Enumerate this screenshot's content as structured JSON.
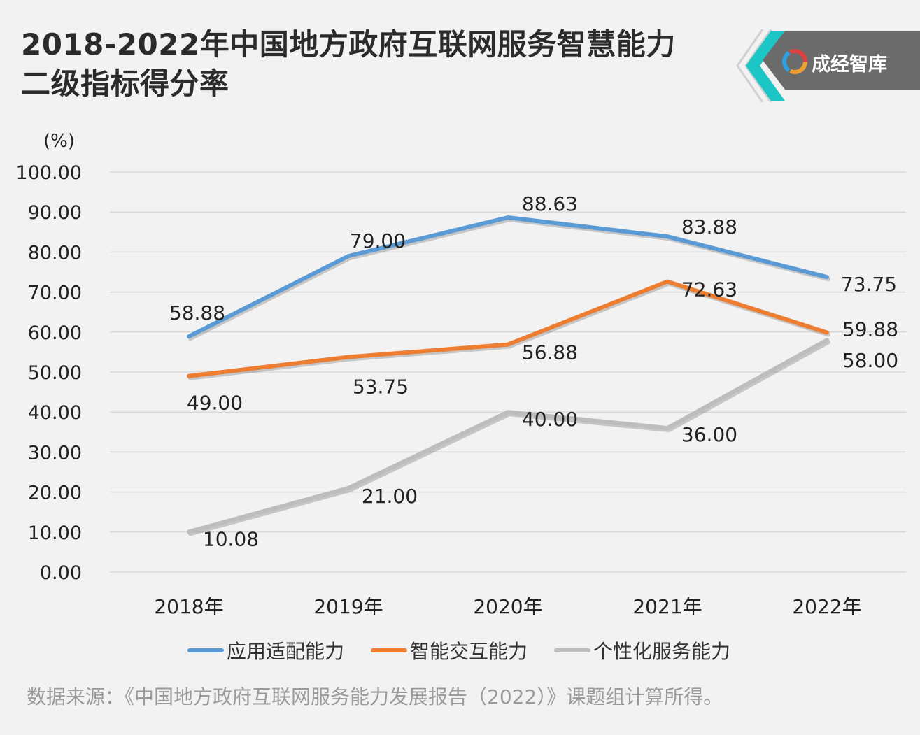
{
  "header": {
    "title_line1": "2018-2022年中国地方政府互联网服务智慧能力",
    "title_line2": "二级指标得分率"
  },
  "brand": {
    "label": "成经智库",
    "icon": "swirl-logo-icon",
    "colors": {
      "accent": "#1cc6c6",
      "badge": "#6b6b6b"
    }
  },
  "chart_data": {
    "type": "line",
    "unit_label": "(%)",
    "categories": [
      "2018年",
      "2019年",
      "2020年",
      "2021年",
      "2022年"
    ],
    "ylim": [
      0,
      100
    ],
    "yticks": [
      "0.00",
      "10.00",
      "20.00",
      "30.00",
      "40.00",
      "50.00",
      "60.00",
      "70.00",
      "80.00",
      "90.00",
      "100.00"
    ],
    "grid": true,
    "legend_position": "bottom",
    "series": [
      {
        "name": "应用适配能力",
        "color": "#5b9bd5",
        "values": [
          58.88,
          79.0,
          88.63,
          83.88,
          73.75
        ],
        "labels": [
          "58.88",
          "79.00",
          "88.63",
          "83.88",
          "73.75"
        ]
      },
      {
        "name": "智能交互能力",
        "color": "#ed7d31",
        "values": [
          49.0,
          53.75,
          56.88,
          72.63,
          59.88
        ],
        "labels": [
          "49.00",
          "53.75",
          "56.88",
          "72.63",
          "59.88"
        ]
      },
      {
        "name": "个性化服务能力",
        "color": "#bdbdbd",
        "values": [
          10.08,
          21.0,
          40.0,
          36.0,
          58.0
        ],
        "labels": [
          "10.08",
          "21.00",
          "40.00",
          "36.00",
          "58.00"
        ]
      }
    ]
  },
  "source": "数据来源：《中国地方政府互联网服务能力发展报告（2022）》课题组计算所得。"
}
